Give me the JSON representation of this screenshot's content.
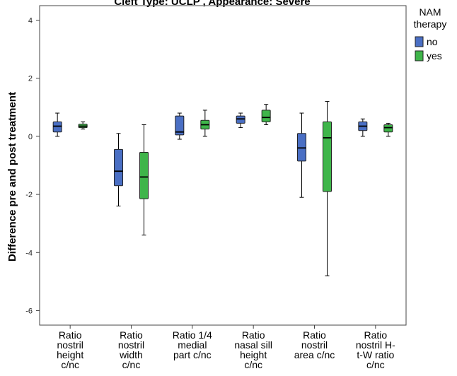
{
  "chart_data": {
    "type": "boxplot",
    "title": "Cleft Type: UCLP , Appearance: Severe",
    "xlabel": "",
    "ylabel": "Difference pre and post treatment",
    "ylim": [
      -6.5,
      4.5
    ],
    "yticks": [
      4,
      2,
      0,
      -2,
      -4,
      -6
    ],
    "categories": [
      [
        "Ratio",
        "nostril",
        "height",
        "c/nc"
      ],
      [
        "Ratio",
        "nostril",
        "width",
        "c/nc"
      ],
      [
        "Ratio 1/4",
        "medial",
        "part c/nc"
      ],
      [
        "Ratio",
        "nasal sill",
        "height",
        "c/nc"
      ],
      [
        "Ratio",
        "nostril",
        "area c/nc"
      ],
      [
        "Ratio",
        "nostril H-",
        "t-W ratio",
        "c/nc"
      ]
    ],
    "legend": {
      "title": [
        "NAM",
        "therapy"
      ],
      "position": "top-right",
      "entries": [
        {
          "label": "no",
          "color": "#4a6fc4"
        },
        {
          "label": "yes",
          "color": "#3fb54a"
        }
      ]
    },
    "series": [
      {
        "name": "no",
        "color": "#4a6fc4",
        "boxes": [
          {
            "min": 0.0,
            "q1": 0.15,
            "median": 0.35,
            "q3": 0.5,
            "max": 0.8
          },
          {
            "min": -2.4,
            "q1": -1.7,
            "median": -1.2,
            "q3": -0.45,
            "max": 0.1
          },
          {
            "min": -0.1,
            "q1": 0.05,
            "median": 0.15,
            "q3": 0.7,
            "max": 0.8
          },
          {
            "min": 0.3,
            "q1": 0.45,
            "median": 0.6,
            "q3": 0.7,
            "max": 0.8
          },
          {
            "min": -2.1,
            "q1": -0.85,
            "median": -0.4,
            "q3": 0.1,
            "max": 0.8
          },
          {
            "min": 0.0,
            "q1": 0.2,
            "median": 0.35,
            "q3": 0.5,
            "max": 0.6
          }
        ]
      },
      {
        "name": "yes",
        "color": "#3fb54a",
        "boxes": [
          {
            "min": 0.25,
            "q1": 0.3,
            "median": 0.35,
            "q3": 0.42,
            "max": 0.5
          },
          {
            "min": -3.4,
            "q1": -2.15,
            "median": -1.4,
            "q3": -0.55,
            "max": 0.4
          },
          {
            "min": 0.0,
            "q1": 0.25,
            "median": 0.4,
            "q3": 0.55,
            "max": 0.9
          },
          {
            "min": 0.4,
            "q1": 0.5,
            "median": 0.65,
            "q3": 0.9,
            "max": 1.1
          },
          {
            "min": -4.8,
            "q1": -1.9,
            "median": -0.05,
            "q3": 0.5,
            "max": 1.2
          },
          {
            "min": 0.0,
            "q1": 0.15,
            "median": 0.3,
            "q3": 0.4,
            "max": 0.45
          }
        ]
      }
    ]
  }
}
